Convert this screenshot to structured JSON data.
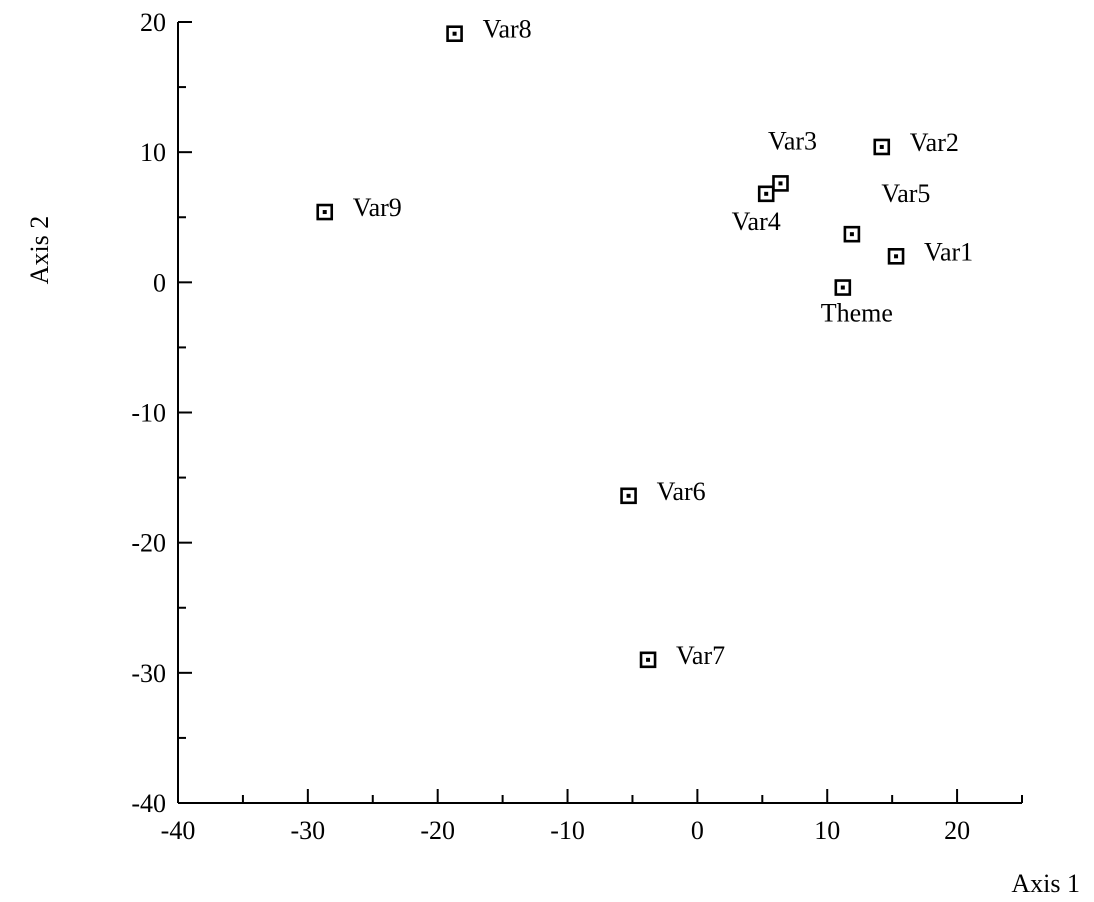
{
  "chart_data": {
    "type": "scatter",
    "title": "",
    "xlabel": "Axis 1",
    "ylabel": "Axis 2",
    "xlim": [
      -40,
      25
    ],
    "ylim": [
      -40,
      20
    ],
    "xticks": [
      -40,
      -30,
      -20,
      -10,
      0,
      10,
      20
    ],
    "yticks": [
      -40,
      -30,
      -20,
      -10,
      0,
      10,
      20
    ],
    "grid": false,
    "legend": "none",
    "points": [
      {
        "label": "Var1",
        "x": 15.3,
        "y": 2.0,
        "label_pos": "right"
      },
      {
        "label": "Var2",
        "x": 14.2,
        "y": 10.4,
        "label_pos": "right"
      },
      {
        "label": "Var3",
        "x": 6.4,
        "y": 7.6,
        "label_pos": "above"
      },
      {
        "label": "Var4",
        "x": 5.3,
        "y": 6.8,
        "label_pos": "below-left"
      },
      {
        "label": "Var5",
        "x": 11.9,
        "y": 3.7,
        "label_pos": "above-right"
      },
      {
        "label": "Var6",
        "x": -5.3,
        "y": -16.4,
        "label_pos": "right"
      },
      {
        "label": "Var7",
        "x": -3.8,
        "y": -29.0,
        "label_pos": "right"
      },
      {
        "label": "Var8",
        "x": -18.7,
        "y": 19.1,
        "label_pos": "right"
      },
      {
        "label": "Var9",
        "x": -28.7,
        "y": 5.4,
        "label_pos": "right"
      },
      {
        "label": "Theme",
        "x": 11.2,
        "y": -0.4,
        "label_pos": "below"
      }
    ]
  }
}
